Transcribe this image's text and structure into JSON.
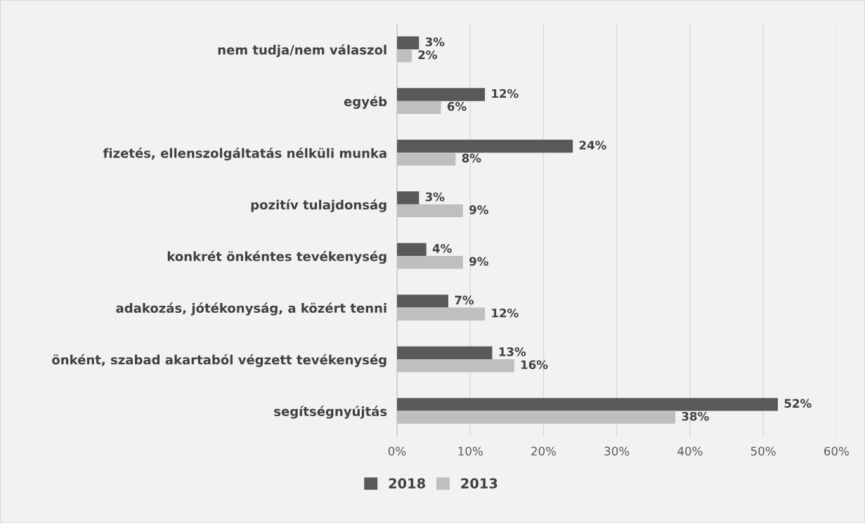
{
  "chart_data": {
    "type": "bar",
    "orientation": "horizontal",
    "categories": [
      "nem tudja/nem válaszol",
      "egyéb",
      "fizetés, ellenszolgáltatás nélküli munka",
      "pozitív tulajdonság",
      "konkrét önkéntes tevékenység",
      "adakozás, jótékonyság, a közért tenni",
      "önként, szabad akartaból végzett tevékenység",
      "segítségnyújtás"
    ],
    "series": [
      {
        "name": "2018",
        "color": "#595959",
        "values": [
          3,
          12,
          24,
          3,
          4,
          7,
          13,
          52
        ],
        "value_labels": [
          "3%",
          "12%",
          "24%",
          "3%",
          "4%",
          "7%",
          "13%",
          "52%"
        ]
      },
      {
        "name": "2013",
        "color": "#bfbfbf",
        "values": [
          2,
          6,
          8,
          9,
          9,
          12,
          16,
          38
        ],
        "value_labels": [
          "2%",
          "6%",
          "8%",
          "9%",
          "9%",
          "12%",
          "16%",
          "38%"
        ]
      }
    ],
    "xlim": [
      0,
      60
    ],
    "xticks": [
      {
        "value": 0,
        "label": "0%"
      },
      {
        "value": 10,
        "label": "10%"
      },
      {
        "value": 20,
        "label": "20%"
      },
      {
        "value": 30,
        "label": "30%"
      },
      {
        "value": 40,
        "label": "40%"
      },
      {
        "value": 50,
        "label": "50%"
      },
      {
        "value": 60,
        "label": "60%"
      }
    ],
    "grid": "x",
    "legend": "bottom"
  }
}
